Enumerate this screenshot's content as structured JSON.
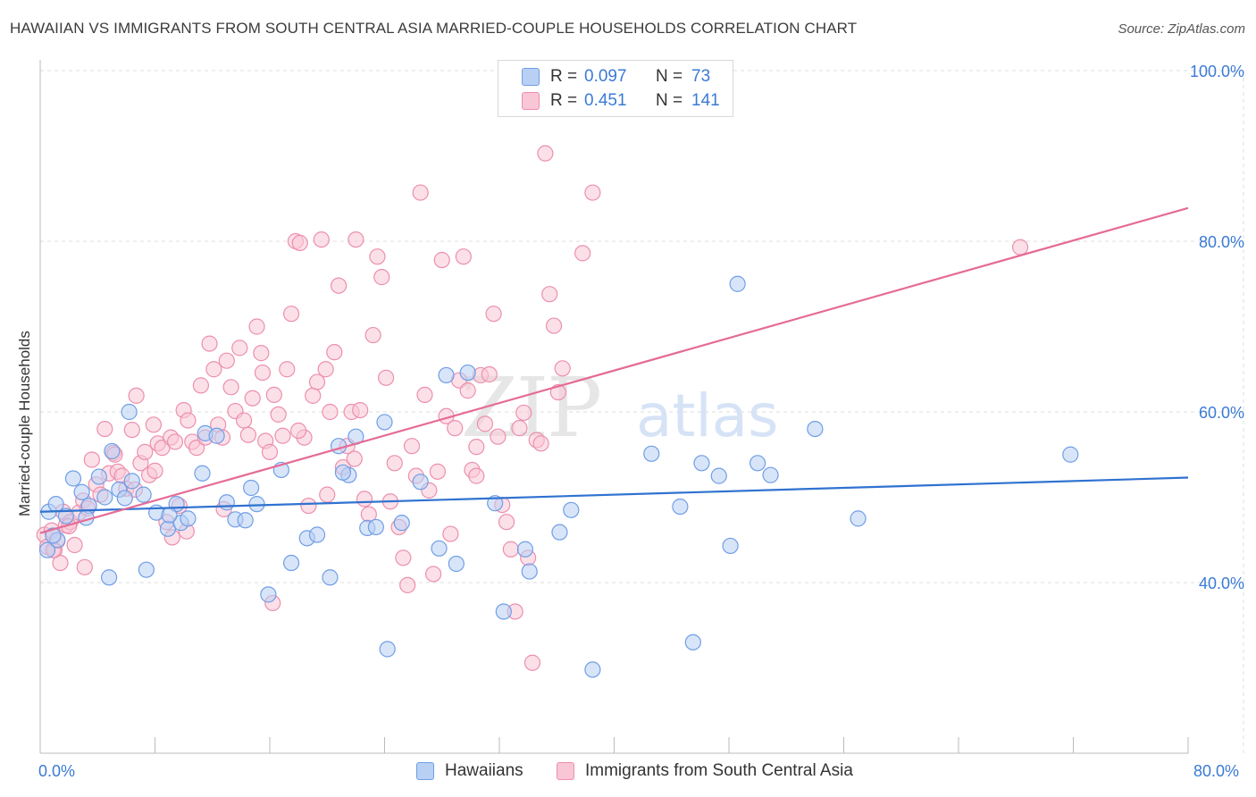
{
  "title": "HAWAIIAN VS IMMIGRANTS FROM SOUTH CENTRAL ASIA MARRIED-COUPLE HOUSEHOLDS CORRELATION CHART",
  "source": "Source: ZipAtlas.com",
  "watermark": "ZIPatlas",
  "legend": {
    "r_label": "R =",
    "n_label": "N =",
    "rows": [
      {
        "r": "0.097",
        "n": "73"
      },
      {
        "r": "0.451",
        "n": "141"
      }
    ]
  },
  "colors": {
    "blue_fill": "#b8d0f4",
    "blue_stroke": "#6f9ee6",
    "blue_line": "#2f72d0",
    "pink_fill": "#f9c6d6",
    "pink_stroke": "#ec8fae",
    "pink_line": "#e56b95",
    "axis_text": "#3a7bd5"
  },
  "chart_data": {
    "type": "scatter",
    "title": "HAWAIIAN VS IMMIGRANTS FROM SOUTH CENTRAL ASIA MARRIED-COUPLE HOUSEHOLDS CORRELATION CHART",
    "xlabel": "",
    "ylabel": "Married-couple Households",
    "xlim": [
      0,
      80
    ],
    "ylim": [
      20,
      100
    ],
    "x_tick_labels": [
      "0.0%",
      "80.0%"
    ],
    "y_tick_labels": [
      "100.0%",
      "80.0%",
      "60.0%",
      "40.0%"
    ],
    "y_ticks": [
      100,
      80,
      60,
      40
    ],
    "grid": true,
    "legend_position": "top-center",
    "series": [
      {
        "name": "Hawaiians",
        "R": 0.097,
        "N": 73,
        "trend": [
          [
            0,
            48.3
          ],
          [
            80,
            52.3
          ]
        ],
        "points": [
          [
            0.6,
            48.3
          ],
          [
            1.1,
            49.2
          ],
          [
            1.8,
            47.8
          ],
          [
            2.3,
            52.2
          ],
          [
            2.9,
            50.6
          ],
          [
            3.4,
            49.0
          ],
          [
            4.1,
            52.4
          ],
          [
            4.8,
            40.6
          ],
          [
            5.0,
            55.4
          ],
          [
            5.5,
            50.9
          ],
          [
            5.9,
            49.9
          ],
          [
            6.4,
            51.9
          ],
          [
            7.2,
            50.3
          ],
          [
            7.4,
            41.5
          ],
          [
            8.9,
            46.3
          ],
          [
            9.5,
            49.2
          ],
          [
            9.8,
            47.0
          ],
          [
            10.3,
            47.5
          ],
          [
            11.3,
            52.8
          ],
          [
            11.5,
            57.5
          ],
          [
            13.0,
            49.4
          ],
          [
            13.6,
            47.4
          ],
          [
            14.3,
            47.3
          ],
          [
            14.7,
            51.1
          ],
          [
            15.1,
            49.2
          ],
          [
            16.8,
            53.2
          ],
          [
            17.5,
            42.3
          ],
          [
            18.6,
            45.2
          ],
          [
            20.2,
            40.6
          ],
          [
            20.8,
            56.0
          ],
          [
            21.5,
            52.6
          ],
          [
            22.0,
            57.1
          ],
          [
            22.8,
            46.4
          ],
          [
            24.0,
            58.8
          ],
          [
            24.2,
            32.2
          ],
          [
            26.5,
            51.8
          ],
          [
            27.8,
            44.0
          ],
          [
            28.3,
            64.3
          ],
          [
            29.0,
            42.2
          ],
          [
            29.8,
            64.6
          ],
          [
            31.7,
            49.3
          ],
          [
            32.3,
            36.6
          ],
          [
            33.8,
            43.9
          ],
          [
            34.1,
            41.3
          ],
          [
            37.0,
            48.5
          ],
          [
            38.5,
            29.8
          ],
          [
            42.6,
            55.1
          ],
          [
            44.6,
            48.9
          ],
          [
            45.5,
            33.0
          ],
          [
            46.1,
            54.0
          ],
          [
            48.1,
            44.3
          ],
          [
            48.6,
            75.0
          ],
          [
            50.0,
            54.0
          ],
          [
            50.9,
            52.6
          ],
          [
            54.0,
            58.0
          ],
          [
            57.0,
            47.5
          ],
          [
            71.8,
            55.0
          ],
          [
            0.5,
            43.8
          ],
          [
            3.2,
            47.6
          ],
          [
            6.2,
            60.0
          ],
          [
            8.1,
            48.2
          ],
          [
            12.3,
            57.2
          ],
          [
            19.3,
            45.6
          ],
          [
            23.4,
            46.5
          ],
          [
            9.0,
            47.9
          ],
          [
            1.2,
            45.0
          ],
          [
            15.9,
            38.6
          ],
          [
            21.1,
            52.9
          ],
          [
            36.2,
            45.9
          ],
          [
            47.3,
            52.5
          ],
          [
            4.5,
            50.0
          ],
          [
            25.2,
            47.0
          ],
          [
            0.9,
            45.5
          ]
        ]
      },
      {
        "name": "Immigrants from South Central Asia",
        "R": 0.451,
        "N": 141,
        "trend": [
          [
            0,
            45.8
          ],
          [
            80,
            83.9
          ]
        ],
        "points": [
          [
            0.3,
            45.6
          ],
          [
            0.5,
            44.2
          ],
          [
            0.8,
            46.1
          ],
          [
            1.0,
            43.8
          ],
          [
            1.2,
            44.9
          ],
          [
            1.4,
            42.3
          ],
          [
            1.6,
            48.3
          ],
          [
            1.8,
            46.7
          ],
          [
            2.1,
            47.1
          ],
          [
            2.4,
            44.4
          ],
          [
            2.7,
            48.2
          ],
          [
            3.0,
            49.6
          ],
          [
            3.3,
            48.7
          ],
          [
            3.6,
            54.4
          ],
          [
            3.9,
            51.5
          ],
          [
            4.2,
            50.3
          ],
          [
            4.5,
            58.0
          ],
          [
            4.8,
            52.8
          ],
          [
            5.1,
            55.2
          ],
          [
            5.4,
            53.0
          ],
          [
            5.7,
            52.5
          ],
          [
            6.0,
            51.0
          ],
          [
            6.4,
            57.9
          ],
          [
            6.7,
            61.9
          ],
          [
            7.0,
            54.0
          ],
          [
            7.3,
            55.3
          ],
          [
            7.6,
            52.6
          ],
          [
            7.9,
            58.5
          ],
          [
            8.2,
            56.3
          ],
          [
            8.5,
            55.8
          ],
          [
            8.8,
            47.1
          ],
          [
            9.1,
            57.0
          ],
          [
            9.4,
            56.5
          ],
          [
            9.7,
            49.0
          ],
          [
            10.0,
            60.2
          ],
          [
            10.3,
            59.0
          ],
          [
            10.6,
            56.5
          ],
          [
            10.9,
            55.8
          ],
          [
            11.2,
            63.1
          ],
          [
            11.5,
            57.0
          ],
          [
            11.8,
            68.0
          ],
          [
            12.1,
            65.0
          ],
          [
            12.4,
            58.5
          ],
          [
            12.7,
            57.0
          ],
          [
            13.0,
            66.0
          ],
          [
            13.3,
            62.9
          ],
          [
            13.6,
            60.1
          ],
          [
            13.9,
            67.5
          ],
          [
            14.2,
            59.0
          ],
          [
            14.5,
            57.3
          ],
          [
            14.8,
            61.6
          ],
          [
            15.1,
            70.0
          ],
          [
            15.4,
            66.9
          ],
          [
            15.7,
            56.6
          ],
          [
            16.0,
            55.3
          ],
          [
            16.3,
            62.0
          ],
          [
            16.6,
            59.7
          ],
          [
            16.9,
            57.2
          ],
          [
            17.2,
            65.0
          ],
          [
            17.5,
            71.5
          ],
          [
            17.8,
            80.0
          ],
          [
            18.1,
            79.8
          ],
          [
            18.4,
            57.0
          ],
          [
            18.7,
            49.0
          ],
          [
            19.0,
            61.9
          ],
          [
            19.3,
            63.5
          ],
          [
            19.6,
            80.2
          ],
          [
            19.9,
            65.0
          ],
          [
            20.2,
            60.0
          ],
          [
            20.5,
            67.0
          ],
          [
            20.8,
            74.8
          ],
          [
            21.1,
            53.5
          ],
          [
            21.4,
            56.0
          ],
          [
            21.7,
            60.0
          ],
          [
            22.0,
            80.2
          ],
          [
            22.3,
            60.2
          ],
          [
            22.6,
            49.8
          ],
          [
            22.9,
            48.0
          ],
          [
            23.2,
            69.0
          ],
          [
            23.5,
            78.2
          ],
          [
            23.8,
            75.8
          ],
          [
            24.1,
            64.0
          ],
          [
            24.4,
            49.5
          ],
          [
            24.7,
            54.0
          ],
          [
            25.0,
            46.5
          ],
          [
            25.3,
            42.9
          ],
          [
            25.6,
            39.7
          ],
          [
            25.9,
            56.0
          ],
          [
            26.2,
            52.5
          ],
          [
            26.5,
            85.7
          ],
          [
            26.8,
            62.0
          ],
          [
            27.1,
            50.8
          ],
          [
            27.4,
            41.0
          ],
          [
            27.7,
            53.0
          ],
          [
            28.0,
            77.8
          ],
          [
            28.3,
            59.5
          ],
          [
            28.6,
            45.7
          ],
          [
            28.9,
            58.1
          ],
          [
            29.2,
            63.7
          ],
          [
            29.5,
            78.2
          ],
          [
            29.8,
            62.5
          ],
          [
            30.1,
            53.2
          ],
          [
            30.4,
            55.9
          ],
          [
            30.7,
            64.3
          ],
          [
            31.0,
            58.6
          ],
          [
            31.3,
            64.4
          ],
          [
            31.6,
            71.5
          ],
          [
            31.9,
            57.1
          ],
          [
            32.2,
            49.1
          ],
          [
            32.5,
            47.1
          ],
          [
            32.8,
            43.9
          ],
          [
            33.1,
            36.6
          ],
          [
            33.4,
            58.1
          ],
          [
            33.7,
            59.9
          ],
          [
            34.0,
            42.9
          ],
          [
            34.3,
            30.6
          ],
          [
            34.6,
            56.7
          ],
          [
            34.9,
            56.3
          ],
          [
            35.2,
            90.3
          ],
          [
            35.5,
            73.8
          ],
          [
            35.8,
            70.1
          ],
          [
            36.1,
            62.3
          ],
          [
            36.4,
            65.1
          ],
          [
            37.8,
            78.6
          ],
          [
            38.5,
            85.7
          ],
          [
            68.3,
            79.3
          ],
          [
            10.2,
            46.0
          ],
          [
            12.8,
            48.6
          ],
          [
            6.6,
            50.9
          ],
          [
            8.0,
            53.1
          ],
          [
            16.2,
            37.6
          ],
          [
            20.0,
            50.3
          ],
          [
            3.1,
            41.8
          ],
          [
            2.0,
            46.6
          ],
          [
            0.9,
            43.8
          ],
          [
            15.5,
            64.6
          ],
          [
            21.9,
            54.5
          ],
          [
            9.2,
            45.3
          ],
          [
            18.0,
            57.8
          ],
          [
            5.2,
            55.0
          ],
          [
            30.4,
            52.5
          ]
        ]
      }
    ]
  }
}
